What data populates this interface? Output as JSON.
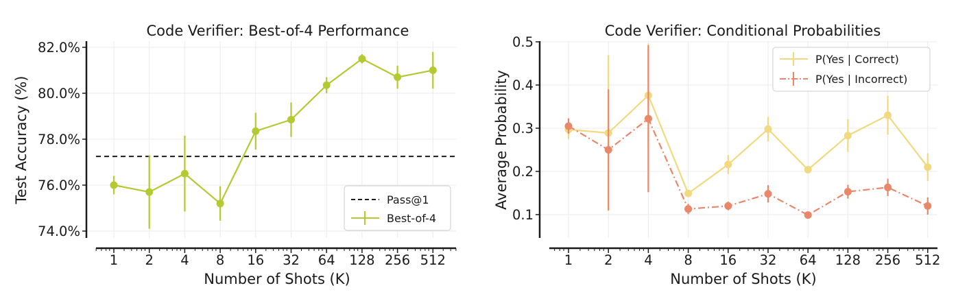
{
  "chart_data": [
    {
      "type": "line",
      "title": "Code Verifier: Best-of-4 Performance",
      "xlabel": "Number of Shots (K)",
      "ylabel": "Test Accuracy (%)",
      "categories": [
        "1",
        "2",
        "4",
        "8",
        "16",
        "32",
        "64",
        "128",
        "256",
        "512"
      ],
      "ylim": [
        73.6,
        82.3
      ],
      "yticks": [
        74.0,
        76.0,
        78.0,
        80.0,
        82.0
      ],
      "ytick_labels": [
        "74.0%",
        "76.0%",
        "78.0%",
        "80.0%",
        "82.0%"
      ],
      "x_scale": "log2",
      "grid": true,
      "legend_position": "lower-right",
      "series": [
        {
          "name": "Best-of-4",
          "color": "#b5c932",
          "style": "solid-marker",
          "values": [
            76.0,
            75.7,
            76.5,
            75.2,
            78.35,
            78.85,
            80.35,
            81.5,
            80.7,
            81.0
          ],
          "errors": [
            0.4,
            1.6,
            1.65,
            0.75,
            0.8,
            0.75,
            0.35,
            0.2,
            0.5,
            0.8
          ]
        }
      ],
      "reference_lines": [
        {
          "name": "Pass@1",
          "value": 77.25,
          "color": "#1a1a1a",
          "style": "dashed"
        }
      ]
    },
    {
      "type": "line",
      "title": "Code Verifier: Conditional Probabilities",
      "xlabel": "Number of Shots (K)",
      "ylabel": "Average Probability",
      "categories": [
        "1",
        "2",
        "4",
        "8",
        "16",
        "32",
        "64",
        "128",
        "256",
        "512"
      ],
      "ylim": [
        0.05,
        0.5
      ],
      "yticks": [
        0.1,
        0.2,
        0.3,
        0.4,
        0.5
      ],
      "ytick_labels": [
        "0.1",
        "0.2",
        "0.3",
        "0.4",
        "0.5"
      ],
      "x_scale": "log2",
      "grid": true,
      "legend_position": "upper-right",
      "series": [
        {
          "name": "P(Yes | Correct)",
          "color": "#f0d97e",
          "style": "solid",
          "values": [
            0.297,
            0.289,
            0.376,
            0.149,
            0.216,
            0.298,
            0.204,
            0.283,
            0.33,
            0.21
          ],
          "errors": [
            0.022,
            0.18,
            0.12,
            0.008,
            0.022,
            0.028,
            0.005,
            0.038,
            0.045,
            0.032
          ]
        },
        {
          "name": "P(Yes | Incorrect)",
          "color": "#e8876a",
          "style": "dashdot",
          "values": [
            0.305,
            0.25,
            0.322,
            0.113,
            0.12,
            0.148,
            0.099,
            0.153,
            0.163,
            0.12
          ],
          "errors": [
            0.018,
            0.14,
            0.17,
            0.012,
            0.01,
            0.02,
            0.005,
            0.016,
            0.02,
            0.02
          ]
        }
      ]
    }
  ]
}
